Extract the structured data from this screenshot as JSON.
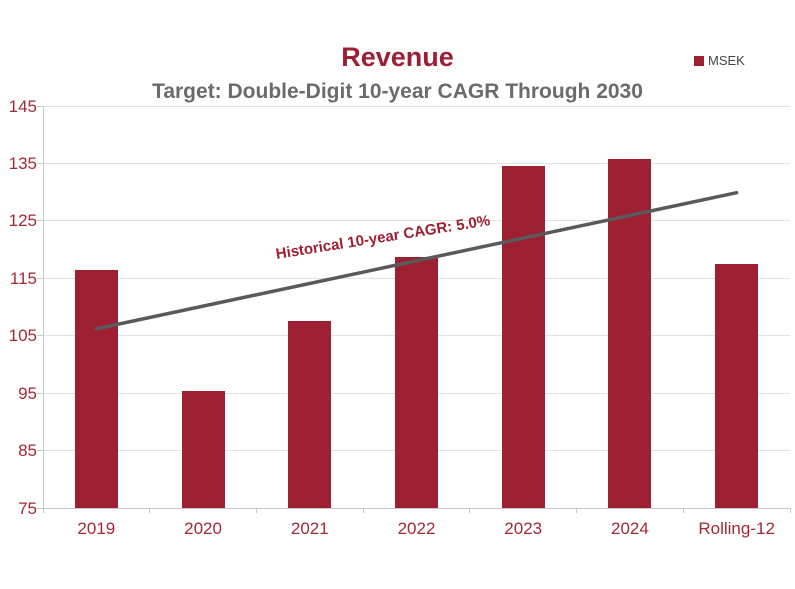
{
  "colors": {
    "bar": "#9C2031",
    "title": "#9E1E32",
    "subtitle": "#6B6B6B",
    "tick_label": "#A32938",
    "trend_line": "#5A5A5A",
    "gridline": "#E2E2E2",
    "axis_line": "#C8C8C8",
    "legend_text": "#444444",
    "background": "#FFFFFF"
  },
  "chart_data": {
    "type": "bar",
    "title": "Revenue",
    "subtitle": "Target: Double-Digit 10-year CAGR Through 2030",
    "legend": [
      "MSEK"
    ],
    "legend_position": "top-right",
    "categories": [
      "2019",
      "2020",
      "2021",
      "2022",
      "2023",
      "2024",
      "Rolling-12"
    ],
    "series": [
      {
        "name": "MSEK",
        "values": [
          116.5,
          95.4,
          107.5,
          118.7,
          134.5,
          135.7,
          117.5
        ]
      }
    ],
    "ylim": [
      75,
      145
    ],
    "yticks": [
      75,
      85,
      95,
      105,
      115,
      125,
      135,
      145
    ],
    "grid": true,
    "trendline": {
      "label": "Historical 10-year CAGR: 5.0%",
      "from": {
        "category": "2019",
        "value": 106.2
      },
      "to": {
        "category": "Rolling-12",
        "value": 129.9
      }
    }
  }
}
